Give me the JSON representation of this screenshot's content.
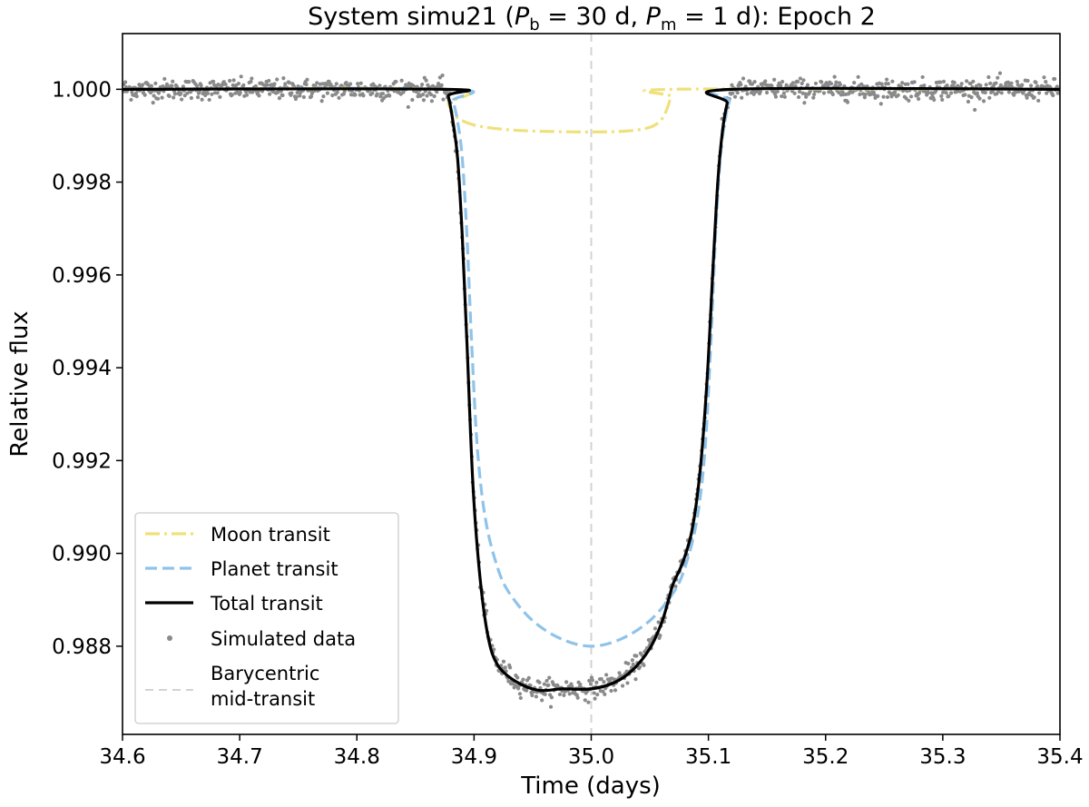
{
  "chart_data": {
    "type": "line",
    "title_parts": {
      "prefix": "System simu21 (",
      "pb_symbol": "P",
      "pb_sub": "b",
      "pb_value": " = 30 d, ",
      "pm_symbol": "P",
      "pm_sub": "m",
      "pm_value": " = 1 d): Epoch 2"
    },
    "xlabel": "Time (days)",
    "ylabel": "Relative flux",
    "xlim": [
      34.6,
      35.4
    ],
    "ylim": [
      0.9861,
      1.0012
    ],
    "x_ticks": [
      34.6,
      34.7,
      34.8,
      34.9,
      35.0,
      35.1,
      35.2,
      35.3,
      35.4
    ],
    "x_tick_labels": [
      "34.6",
      "34.7",
      "34.8",
      "34.9",
      "35.0",
      "35.1",
      "35.2",
      "35.3",
      "35.4"
    ],
    "y_ticks": [
      0.988,
      0.99,
      0.992,
      0.994,
      0.996,
      0.998,
      1.0
    ],
    "y_tick_labels": [
      "0.988",
      "0.990",
      "0.992",
      "0.994",
      "0.996",
      "0.998",
      "1.000"
    ],
    "grid": false,
    "legend_position": "lower-left",
    "barycentric_midtransit": 35.0,
    "series": [
      {
        "name": "Moon transit",
        "color": "#f0e07a",
        "style": "dash-dot",
        "points": [
          [
            34.6,
            1.0
          ],
          [
            34.875,
            1.0
          ],
          [
            34.878,
            0.9997
          ],
          [
            34.882,
            0.99948
          ],
          [
            34.888,
            0.99935
          ],
          [
            34.9,
            0.99923
          ],
          [
            34.92,
            0.99915
          ],
          [
            34.95,
            0.9991
          ],
          [
            35.0,
            0.99908
          ],
          [
            35.03,
            0.9991
          ],
          [
            35.05,
            0.99918
          ],
          [
            35.06,
            0.99935
          ],
          [
            35.065,
            0.9996
          ],
          [
            35.068,
            0.99985
          ],
          [
            35.07,
            1.0
          ],
          [
            35.4,
            1.0
          ]
        ]
      },
      {
        "name": "Planet transit",
        "color": "#8fc3ea",
        "style": "dashed",
        "points": [
          [
            34.6,
            1.0
          ],
          [
            34.878,
            1.0
          ],
          [
            34.882,
            0.99975
          ],
          [
            34.886,
            0.9993
          ],
          [
            34.89,
            0.9985
          ],
          [
            34.894,
            0.9968
          ],
          [
            34.898,
            0.9945
          ],
          [
            34.903,
            0.9922
          ],
          [
            34.91,
            0.9907
          ],
          [
            34.92,
            0.9897
          ],
          [
            34.93,
            0.98915
          ],
          [
            34.95,
            0.98855
          ],
          [
            34.975,
            0.98815
          ],
          [
            35.0,
            0.988
          ],
          [
            35.025,
            0.98815
          ],
          [
            35.05,
            0.98855
          ],
          [
            35.07,
            0.98915
          ],
          [
            35.08,
            0.9897
          ],
          [
            35.09,
            0.9907
          ],
          [
            35.097,
            0.9922
          ],
          [
            35.102,
            0.9945
          ],
          [
            35.106,
            0.9968
          ],
          [
            35.11,
            0.9985
          ],
          [
            35.114,
            0.9993
          ],
          [
            35.118,
            0.99975
          ],
          [
            35.122,
            1.0
          ],
          [
            35.4,
            1.0
          ]
        ]
      },
      {
        "name": "Total transit",
        "color": "#000000",
        "style": "solid",
        "points": [
          [
            34.6,
            1.0
          ],
          [
            34.875,
            1.0
          ],
          [
            34.878,
            0.99985
          ],
          [
            34.882,
            0.9993
          ],
          [
            34.886,
            0.9985
          ],
          [
            34.89,
            0.9968
          ],
          [
            34.894,
            0.9945
          ],
          [
            34.899,
            0.9915
          ],
          [
            34.905,
            0.9895
          ],
          [
            34.912,
            0.9882
          ],
          [
            34.92,
            0.9876
          ],
          [
            34.935,
            0.98725
          ],
          [
            34.955,
            0.98705
          ],
          [
            34.975,
            0.98708
          ],
          [
            35.0,
            0.98708
          ],
          [
            35.02,
            0.98722
          ],
          [
            35.035,
            0.98748
          ],
          [
            35.05,
            0.98795
          ],
          [
            35.06,
            0.9885
          ],
          [
            35.066,
            0.989
          ],
          [
            35.07,
            0.98935
          ],
          [
            35.078,
            0.9898
          ],
          [
            35.086,
            0.9905
          ],
          [
            35.093,
            0.9918
          ],
          [
            35.099,
            0.9938
          ],
          [
            35.104,
            0.9962
          ],
          [
            35.108,
            0.998
          ],
          [
            35.112,
            0.9991
          ],
          [
            35.116,
            0.9997
          ],
          [
            35.12,
            1.0
          ],
          [
            35.4,
            1.0
          ]
        ]
      }
    ],
    "scatter": {
      "name": "Simulated data",
      "color": "#8a8a8a",
      "noise": 0.00011
    },
    "vline_label_line1": "Barycentric",
    "vline_label_line2": "mid-transit",
    "vline_color": "#d3d3d3"
  }
}
